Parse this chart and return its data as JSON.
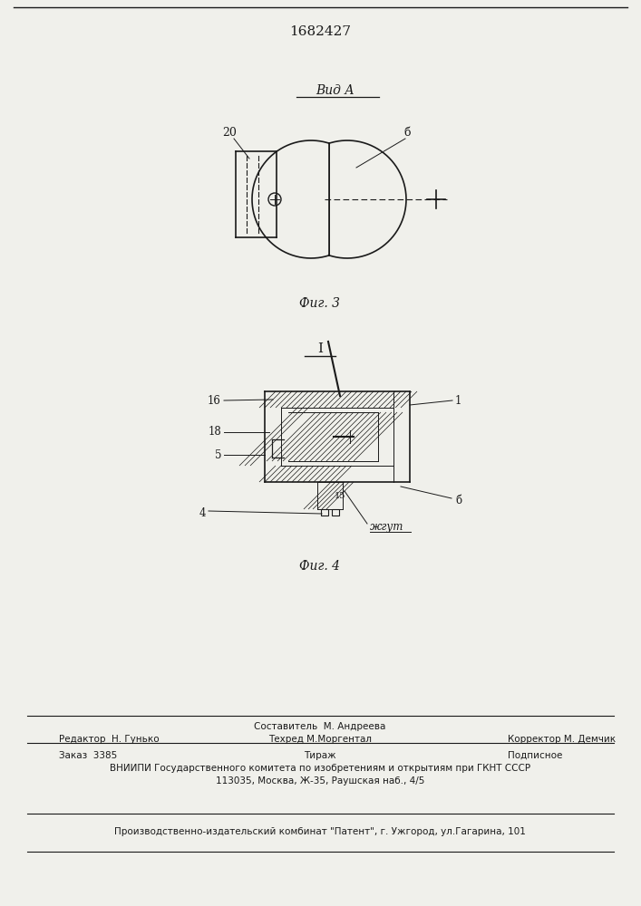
{
  "patent_number": "1682427",
  "fig3_title": "Вид А",
  "fig3_caption": "Фиг. 3",
  "fig4_caption": "Фиг. 4",
  "fig4_section": "I",
  "bg_color": "#f0f0eb",
  "line_color": "#1a1a1a",
  "footer_editor": "Редактор  Н. Гунько",
  "footer_comp": "Составитель  М. Андреева",
  "footer_tech": "Техред М.Моргентал",
  "footer_corr": "Корректор М. Демчик",
  "footer_order": "Заказ  3385",
  "footer_circ": "Тираж",
  "footer_sub": "Подписное",
  "footer_vniipи": "ВНИИПИ Государственного комитета по изобретениям и открытиям при ГКНТ СССР",
  "footer_addr": "113035, Москва, Ж-35, Раушская наб., 4/5",
  "footer_prod": "Производственно-издательский комбинат \"Патент\", г. Ужгород, ул.Гагарина, 101"
}
